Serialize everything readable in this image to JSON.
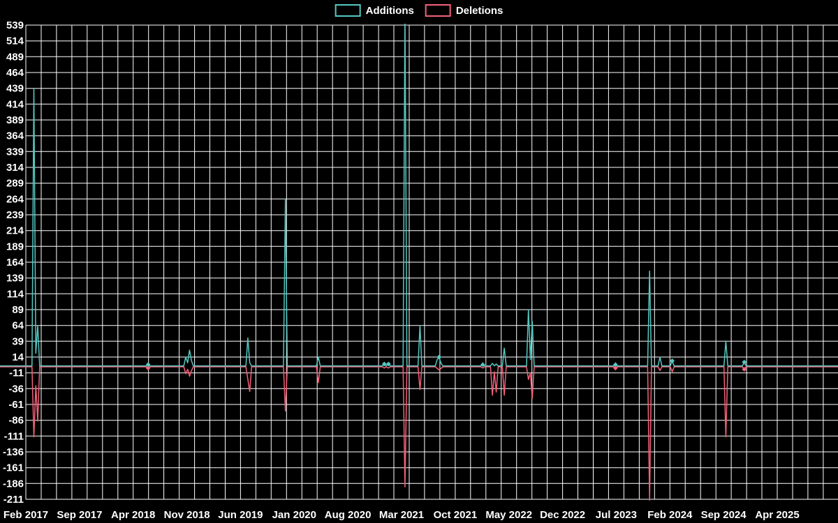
{
  "chart_data": {
    "type": "line",
    "title": "",
    "background_color": "#000000",
    "grid": {
      "color": "#ffffff",
      "vertical_step_months": 2,
      "horizontal_step_value": 25
    },
    "legend_position": "top-center",
    "x_axis": {
      "labels": [
        "Feb 2017",
        "Sep 2017",
        "Apr 2018",
        "Nov 2018",
        "Jun 2019",
        "Jan 2020",
        "Aug 2020",
        "Mar 2021",
        "Oct 2021",
        "May 2022",
        "Dec 2022",
        "Jul 2023",
        "Feb 2024",
        "Sep 2024",
        "Apr 2025"
      ],
      "label_positions_months": [
        0,
        7,
        14,
        21,
        28,
        35,
        42,
        49,
        56,
        63,
        70,
        77,
        84,
        91,
        98
      ]
    },
    "y_axis": {
      "min": -211,
      "max": 539,
      "step": 25,
      "ticks": [
        539,
        514,
        489,
        464,
        439,
        414,
        389,
        364,
        339,
        314,
        289,
        264,
        239,
        214,
        189,
        164,
        139,
        114,
        89,
        64,
        39,
        14,
        -11,
        -36,
        -61,
        -86,
        -111,
        -136,
        -161,
        -186,
        -211
      ]
    },
    "series": [
      {
        "name": "Additions",
        "color": "#56c8c2",
        "points": [
          [
            -3.4,
            0
          ],
          [
            0.8,
            0
          ],
          [
            1.05,
            439
          ],
          [
            1.3,
            20
          ],
          [
            1.55,
            64
          ],
          [
            1.8,
            0
          ],
          [
            15.7,
            0
          ],
          [
            15.95,
            2
          ],
          [
            16.2,
            0
          ],
          [
            20.6,
            0
          ],
          [
            20.85,
            14
          ],
          [
            21.1,
            5
          ],
          [
            21.35,
            25
          ],
          [
            21.6,
            8
          ],
          [
            21.85,
            0
          ],
          [
            28.7,
            0
          ],
          [
            28.95,
            44
          ],
          [
            29.2,
            5
          ],
          [
            29.45,
            0
          ],
          [
            33.6,
            0
          ],
          [
            33.85,
            264
          ],
          [
            34.1,
            0
          ],
          [
            37.9,
            0
          ],
          [
            38.15,
            14
          ],
          [
            38.4,
            0
          ],
          [
            46.5,
            0
          ],
          [
            46.75,
            3
          ],
          [
            47.0,
            0
          ],
          [
            47.3,
            3
          ],
          [
            47.55,
            0
          ],
          [
            49.2,
            0
          ],
          [
            49.45,
            560
          ],
          [
            49.7,
            0
          ],
          [
            51.15,
            0
          ],
          [
            51.4,
            64
          ],
          [
            51.65,
            0
          ],
          [
            53.4,
            0
          ],
          [
            53.65,
            10
          ],
          [
            53.9,
            14
          ],
          [
            54.15,
            4
          ],
          [
            54.4,
            0
          ],
          [
            59.35,
            0
          ],
          [
            59.6,
            2
          ],
          [
            59.85,
            0
          ],
          [
            60.6,
            0
          ],
          [
            60.85,
            4
          ],
          [
            61.1,
            0
          ],
          [
            61.35,
            3
          ],
          [
            61.6,
            0
          ],
          [
            62.15,
            0
          ],
          [
            62.4,
            28
          ],
          [
            62.65,
            0
          ],
          [
            65.3,
            0
          ],
          [
            65.55,
            89
          ],
          [
            65.8,
            10
          ],
          [
            66.05,
            70
          ],
          [
            66.3,
            0
          ],
          [
            76.65,
            0
          ],
          [
            76.9,
            2
          ],
          [
            77.15,
            0
          ],
          [
            81.1,
            0
          ],
          [
            81.35,
            150
          ],
          [
            81.6,
            0
          ],
          [
            82.45,
            0
          ],
          [
            82.7,
            14
          ],
          [
            82.95,
            0
          ],
          [
            84.05,
            0
          ],
          [
            84.3,
            8
          ],
          [
            84.55,
            0
          ],
          [
            91.05,
            0
          ],
          [
            91.3,
            39
          ],
          [
            91.55,
            0
          ],
          [
            93.45,
            0
          ],
          [
            93.7,
            6
          ],
          [
            93.95,
            0
          ],
          [
            106,
            0
          ]
        ],
        "markers": [
          [
            15.95,
            2
          ],
          [
            46.75,
            3
          ],
          [
            47.3,
            3
          ],
          [
            53.9,
            14
          ],
          [
            59.6,
            2
          ],
          [
            76.9,
            2
          ],
          [
            84.3,
            8
          ],
          [
            93.7,
            6
          ]
        ]
      },
      {
        "name": "Deletions",
        "color": "#f4617a",
        "points": [
          [
            -3.4,
            0
          ],
          [
            0.8,
            0
          ],
          [
            1.05,
            -111
          ],
          [
            1.3,
            -30
          ],
          [
            1.55,
            -86
          ],
          [
            1.8,
            0
          ],
          [
            15.7,
            0
          ],
          [
            15.95,
            -2
          ],
          [
            16.2,
            0
          ],
          [
            20.6,
            0
          ],
          [
            20.85,
            -11
          ],
          [
            21.1,
            -4
          ],
          [
            21.35,
            -15
          ],
          [
            21.6,
            -6
          ],
          [
            21.85,
            0
          ],
          [
            28.7,
            0
          ],
          [
            28.95,
            -20
          ],
          [
            29.2,
            -39
          ],
          [
            29.45,
            0
          ],
          [
            33.6,
            0
          ],
          [
            33.85,
            -70
          ],
          [
            34.1,
            0
          ],
          [
            37.9,
            0
          ],
          [
            38.15,
            -25
          ],
          [
            38.4,
            0
          ],
          [
            46.5,
            0
          ],
          [
            46.75,
            -2
          ],
          [
            47.0,
            0
          ],
          [
            47.3,
            -2
          ],
          [
            47.55,
            0
          ],
          [
            49.2,
            0
          ],
          [
            49.45,
            -190
          ],
          [
            49.7,
            0
          ],
          [
            51.15,
            0
          ],
          [
            51.4,
            -36
          ],
          [
            51.65,
            0
          ],
          [
            53.4,
            0
          ],
          [
            53.9,
            -5
          ],
          [
            54.4,
            0
          ],
          [
            59.35,
            0
          ],
          [
            59.6,
            -2
          ],
          [
            59.85,
            0
          ],
          [
            60.6,
            0
          ],
          [
            60.85,
            -45
          ],
          [
            61.1,
            -8
          ],
          [
            61.35,
            -40
          ],
          [
            61.6,
            0
          ],
          [
            62.15,
            0
          ],
          [
            62.4,
            -45
          ],
          [
            62.65,
            0
          ],
          [
            65.3,
            0
          ],
          [
            65.55,
            -20
          ],
          [
            65.8,
            -10
          ],
          [
            66.05,
            -50
          ],
          [
            66.3,
            0
          ],
          [
            76.65,
            0
          ],
          [
            76.9,
            -2
          ],
          [
            77.15,
            0
          ],
          [
            81.1,
            0
          ],
          [
            81.35,
            -211
          ],
          [
            81.6,
            0
          ],
          [
            82.45,
            0
          ],
          [
            82.7,
            -6
          ],
          [
            82.95,
            0
          ],
          [
            84.05,
            0
          ],
          [
            84.3,
            -8
          ],
          [
            84.55,
            0
          ],
          [
            91.05,
            0
          ],
          [
            91.3,
            -111
          ],
          [
            91.55,
            0
          ],
          [
            93.45,
            0
          ],
          [
            93.7,
            -4
          ],
          [
            93.95,
            0
          ],
          [
            106,
            0
          ]
        ],
        "markers": [
          [
            15.95,
            -2
          ],
          [
            76.9,
            -2
          ],
          [
            93.7,
            -4
          ]
        ]
      }
    ]
  }
}
